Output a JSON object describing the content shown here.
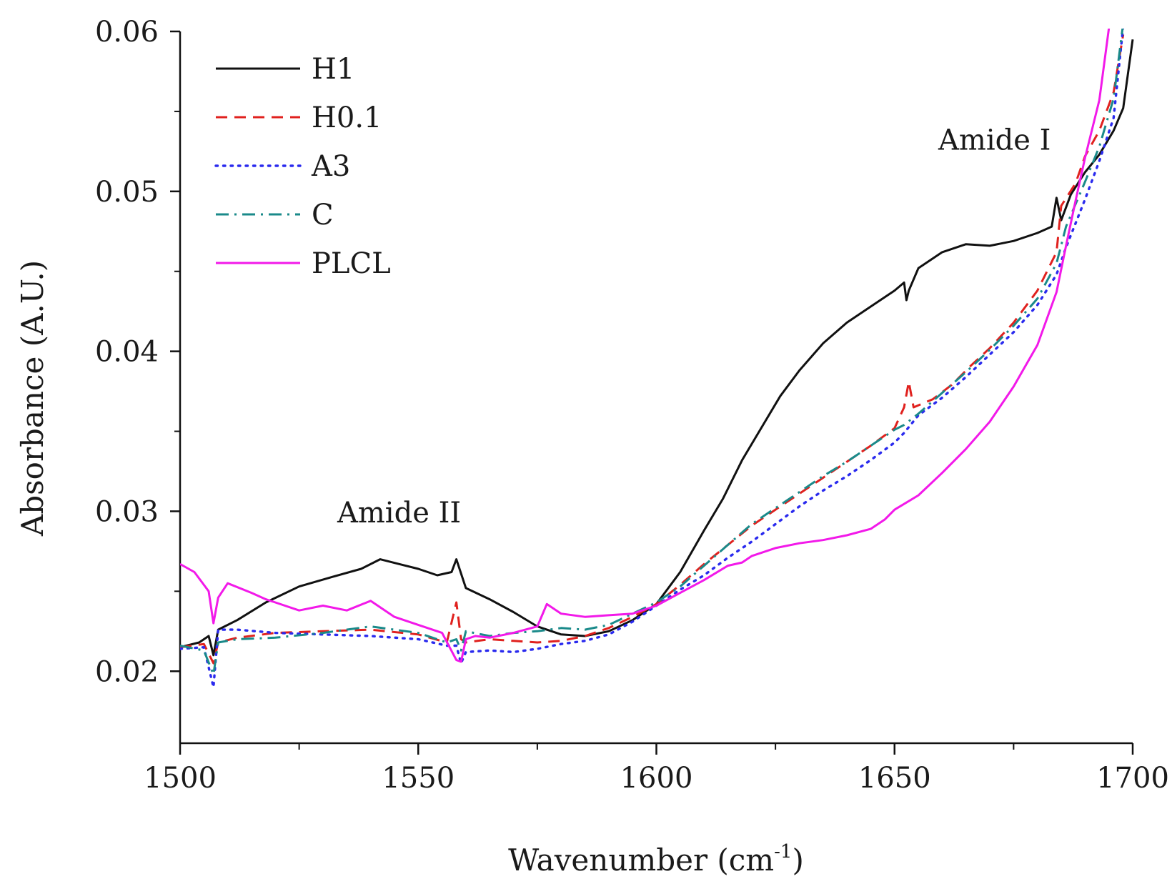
{
  "chart_data": {
    "type": "line",
    "title": "",
    "xlabel": "Wavenumber (cm",
    "xlabel_sup": "-1",
    "xlabel_close": ")",
    "ylabel": "Absorbance (A.U.)",
    "xlim": [
      1500,
      1700
    ],
    "ylim": [
      0.0155,
      0.06
    ],
    "xticks": [
      1500,
      1550,
      1600,
      1650,
      1700
    ],
    "xtick_labels": [
      "1500",
      "1550",
      "1600",
      "1650",
      "1700"
    ],
    "xminor": [
      1525,
      1575,
      1625,
      1675
    ],
    "yticks": [
      0.02,
      0.03,
      0.04,
      0.05,
      0.06
    ],
    "ytick_labels": [
      "0.02",
      "0.03",
      "0.04",
      "0.05",
      "0.06"
    ],
    "yminor": [
      0.025,
      0.035,
      0.045,
      0.055
    ],
    "grid": false,
    "legend_position": "top-left",
    "annotations": [
      {
        "text": "Amide II",
        "x": 1546,
        "y": 0.0293
      },
      {
        "text": "Amide I",
        "x": 1671,
        "y": 0.0526
      }
    ],
    "series": [
      {
        "name": "H1",
        "color": "#111111",
        "dash": "solid",
        "x": [
          1500,
          1504,
          1506,
          1507,
          1508,
          1512,
          1518,
          1525,
          1532,
          1538,
          1542,
          1546,
          1550,
          1554,
          1557,
          1558,
          1560,
          1565,
          1570,
          1575,
          1580,
          1585,
          1590,
          1595,
          1600,
          1605,
          1610,
          1614,
          1618,
          1622,
          1626,
          1630,
          1635,
          1640,
          1645,
          1650,
          1652,
          1652.5,
          1653,
          1655,
          1660,
          1665,
          1670,
          1675,
          1680,
          1683,
          1684,
          1685,
          1687,
          1690,
          1693,
          1696,
          1698,
          1700
        ],
        "y": [
          0.0215,
          0.0218,
          0.0222,
          0.021,
          0.0226,
          0.0232,
          0.0243,
          0.0253,
          0.0259,
          0.0264,
          0.027,
          0.0267,
          0.0264,
          0.026,
          0.0262,
          0.027,
          0.0252,
          0.0245,
          0.0237,
          0.0228,
          0.0223,
          0.0222,
          0.0225,
          0.0232,
          0.0242,
          0.0262,
          0.0288,
          0.0308,
          0.0332,
          0.0352,
          0.0372,
          0.0388,
          0.0405,
          0.0418,
          0.0428,
          0.0438,
          0.0443,
          0.0432,
          0.0438,
          0.0452,
          0.0462,
          0.0467,
          0.0466,
          0.0469,
          0.0474,
          0.0478,
          0.0496,
          0.0482,
          0.0498,
          0.0512,
          0.0523,
          0.0538,
          0.0552,
          0.0595
        ]
      },
      {
        "name": "H0.1",
        "color": "#e0211e",
        "dash": "dashed",
        "x": [
          1500,
          1505,
          1507,
          1508,
          1512,
          1520,
          1530,
          1540,
          1550,
          1556,
          1558,
          1559,
          1560,
          1565,
          1570,
          1575,
          1580,
          1585,
          1590,
          1595,
          1600,
          1605,
          1610,
          1615,
          1620,
          1625,
          1630,
          1635,
          1640,
          1645,
          1650,
          1652,
          1653,
          1654,
          1658,
          1662,
          1666,
          1670,
          1675,
          1680,
          1684,
          1685,
          1688,
          1690,
          1693,
          1696,
          1698
        ],
        "y": [
          0.0215,
          0.0217,
          0.0205,
          0.0218,
          0.0221,
          0.0224,
          0.0225,
          0.0226,
          0.0223,
          0.0218,
          0.0243,
          0.022,
          0.0218,
          0.022,
          0.0219,
          0.0218,
          0.0219,
          0.0222,
          0.0227,
          0.0234,
          0.0242,
          0.0254,
          0.0267,
          0.0279,
          0.0291,
          0.0301,
          0.0311,
          0.0321,
          0.0331,
          0.0341,
          0.0352,
          0.0365,
          0.0381,
          0.0365,
          0.037,
          0.0379,
          0.0391,
          0.0402,
          0.0418,
          0.0438,
          0.0462,
          0.0491,
          0.0505,
          0.0522,
          0.0538,
          0.0562,
          0.0598
        ]
      },
      {
        "name": "A3",
        "color": "#2a2aee",
        "dash": "dotted",
        "x": [
          1500,
          1505,
          1507,
          1508,
          1512,
          1520,
          1530,
          1540,
          1550,
          1556,
          1558,
          1559,
          1560,
          1565,
          1570,
          1575,
          1580,
          1585,
          1590,
          1595,
          1600,
          1605,
          1610,
          1615,
          1620,
          1625,
          1630,
          1635,
          1640,
          1645,
          1650,
          1652,
          1655,
          1660,
          1665,
          1670,
          1675,
          1680,
          1684,
          1686,
          1690,
          1693,
          1696,
          1698
        ],
        "y": [
          0.0214,
          0.0215,
          0.019,
          0.0226,
          0.0226,
          0.0224,
          0.0223,
          0.0222,
          0.022,
          0.0216,
          0.0216,
          0.0205,
          0.0212,
          0.0213,
          0.0212,
          0.0214,
          0.0217,
          0.0219,
          0.0223,
          0.0231,
          0.0241,
          0.0251,
          0.026,
          0.0271,
          0.0281,
          0.0292,
          0.0303,
          0.0313,
          0.0322,
          0.0332,
          0.0343,
          0.0349,
          0.036,
          0.0371,
          0.0384,
          0.0398,
          0.0412,
          0.0429,
          0.0448,
          0.0465,
          0.0495,
          0.0519,
          0.0546,
          0.0603
        ]
      },
      {
        "name": "C",
        "color": "#1a8a8a",
        "dash": "dashdot",
        "x": [
          1500,
          1505,
          1507,
          1508,
          1512,
          1520,
          1530,
          1540,
          1550,
          1556,
          1558,
          1559,
          1560,
          1565,
          1570,
          1575,
          1580,
          1585,
          1590,
          1595,
          1600,
          1605,
          1610,
          1615,
          1620,
          1625,
          1630,
          1635,
          1640,
          1645,
          1650,
          1652,
          1655,
          1660,
          1665,
          1670,
          1675,
          1680,
          1684,
          1686,
          1690,
          1693,
          1696,
          1698
        ],
        "y": [
          0.0216,
          0.0213,
          0.0198,
          0.0218,
          0.022,
          0.0221,
          0.0224,
          0.0228,
          0.0224,
          0.0218,
          0.022,
          0.0213,
          0.0225,
          0.0222,
          0.0224,
          0.0225,
          0.0227,
          0.0226,
          0.0229,
          0.0236,
          0.0243,
          0.0253,
          0.0266,
          0.0279,
          0.0292,
          0.0302,
          0.0312,
          0.0322,
          0.0331,
          0.0341,
          0.0351,
          0.0354,
          0.0361,
          0.0374,
          0.0387,
          0.0401,
          0.0416,
          0.0433,
          0.0455,
          0.0478,
          0.0506,
          0.0528,
          0.0558,
          0.0605
        ]
      },
      {
        "name": "PLCL",
        "color": "#f219e9",
        "dash": "solid",
        "x": [
          1500,
          1503,
          1506,
          1507,
          1508,
          1510,
          1515,
          1518,
          1520,
          1525,
          1530,
          1535,
          1540,
          1545,
          1550,
          1555,
          1558,
          1559,
          1560,
          1562,
          1565,
          1570,
          1575,
          1577,
          1580,
          1585,
          1590,
          1595,
          1600,
          1605,
          1610,
          1615,
          1618,
          1620,
          1625,
          1630,
          1635,
          1640,
          1645,
          1648,
          1650,
          1655,
          1660,
          1665,
          1670,
          1675,
          1680,
          1684,
          1686,
          1688,
          1690,
          1693,
          1695
        ],
        "y": [
          0.0267,
          0.0262,
          0.025,
          0.023,
          0.0246,
          0.0255,
          0.0249,
          0.0245,
          0.0243,
          0.0238,
          0.0241,
          0.0238,
          0.0244,
          0.0234,
          0.0229,
          0.0224,
          0.0207,
          0.0206,
          0.022,
          0.0222,
          0.0221,
          0.0224,
          0.0228,
          0.0242,
          0.0236,
          0.0234,
          0.0235,
          0.0236,
          0.0241,
          0.0249,
          0.0257,
          0.0266,
          0.0268,
          0.0272,
          0.0277,
          0.028,
          0.0282,
          0.0285,
          0.0289,
          0.0295,
          0.0301,
          0.031,
          0.0324,
          0.0339,
          0.0356,
          0.0378,
          0.0404,
          0.0437,
          0.0466,
          0.0494,
          0.0521,
          0.0557,
          0.0602
        ]
      }
    ]
  }
}
